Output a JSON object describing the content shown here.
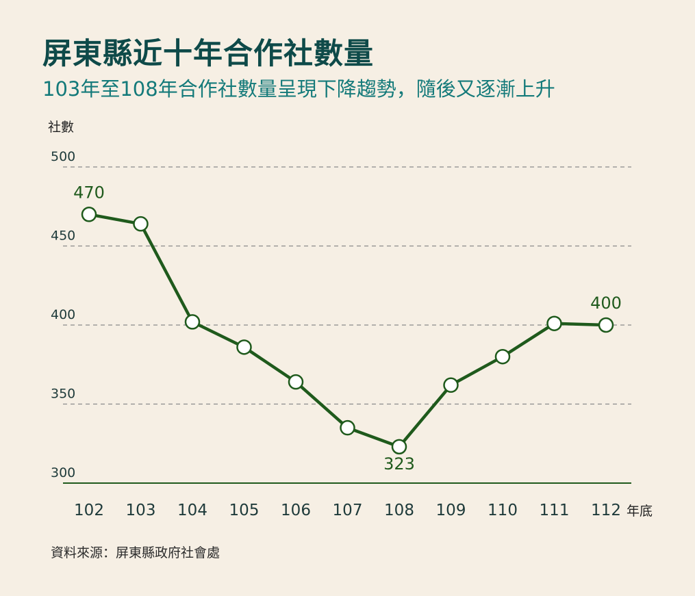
{
  "title": "屏東縣近十年合作社數量",
  "subtitle": "103年至108年合作社數量呈現下降趨勢，隨後又逐漸上升",
  "source": "資料來源：屏東縣政府社會處",
  "colors": {
    "background": "#f6efe4",
    "title": "#0e4a49",
    "subtitle": "#147a7a",
    "line": "#1f5a1c",
    "grid": "#8a8a8a"
  },
  "chart_data": {
    "type": "line",
    "ylabel": "社數",
    "xlabel": "年底",
    "ylim": [
      300,
      500
    ],
    "yticks": [
      300,
      350,
      400,
      450,
      500
    ],
    "grid": "dashed-horizontal",
    "categories": [
      "102",
      "103",
      "104",
      "105",
      "106",
      "107",
      "108",
      "109",
      "110",
      "111",
      "112"
    ],
    "series": [
      {
        "values": [
          470,
          464,
          402,
          386,
          364,
          335,
          323,
          362,
          380,
          401,
          400
        ]
      }
    ],
    "annotations": [
      {
        "index": 0,
        "text": "470",
        "position": "above"
      },
      {
        "index": 6,
        "text": "323",
        "position": "below"
      },
      {
        "index": 10,
        "text": "400",
        "position": "above"
      }
    ]
  }
}
